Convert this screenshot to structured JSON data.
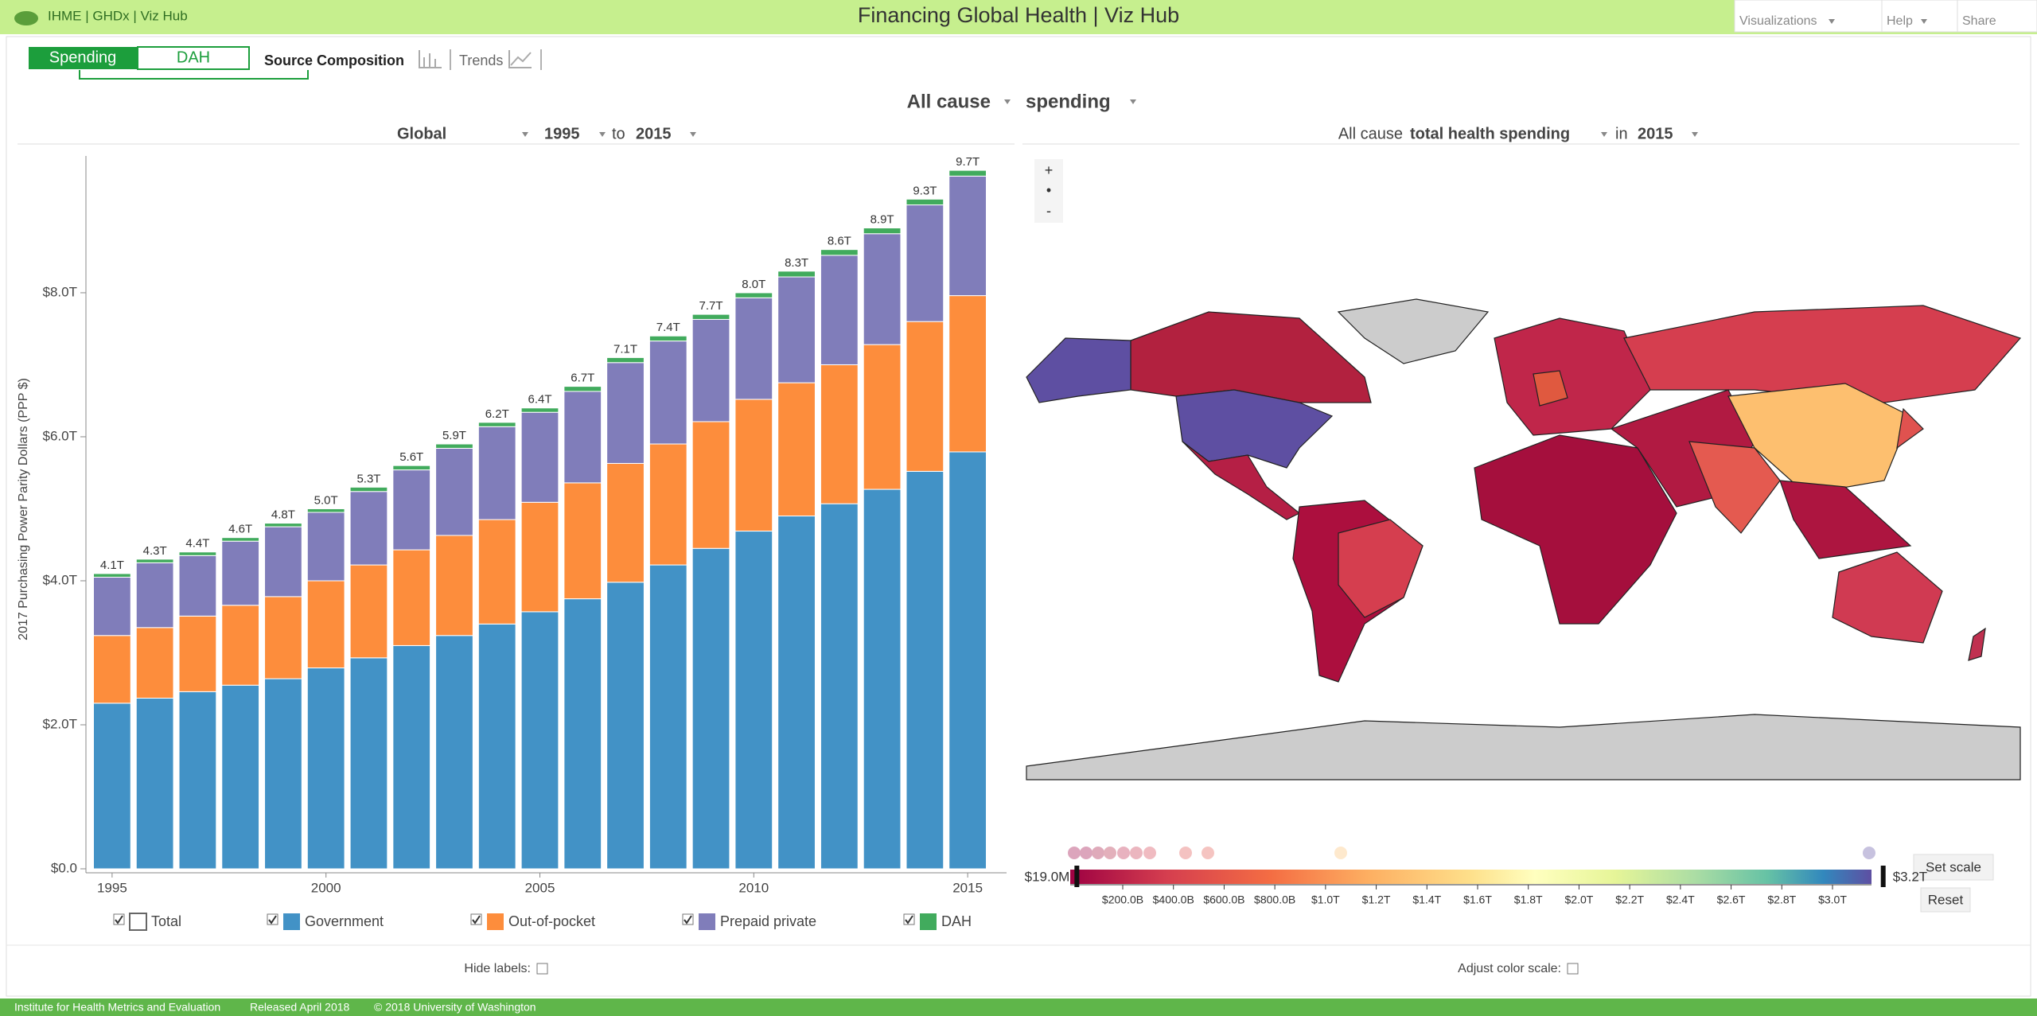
{
  "header": {
    "links": "IHME | GHDx | Viz Hub",
    "title": "Financing Global Health | Viz Hub",
    "menu": [
      "Visualizations",
      "Help",
      "Share"
    ]
  },
  "toolbar": {
    "toggle": [
      "Spending",
      "DAH"
    ],
    "views": [
      "Source Composition",
      "Trends"
    ]
  },
  "selector": {
    "cause": "All cause",
    "measure": "spending"
  },
  "left_filters": {
    "location": "Global",
    "start": "1995",
    "to": "to",
    "end": "2015"
  },
  "right_filters": {
    "cause": "All cause",
    "measure": "total health spending",
    "in": "in",
    "year": "2015"
  },
  "chart_data": {
    "type": "bar",
    "stacked": true,
    "ylabel": "2017 Purchasing Power Parity Dollars (PPP $)",
    "x": [
      1995,
      1996,
      1997,
      1998,
      1999,
      2000,
      2001,
      2002,
      2003,
      2004,
      2005,
      2006,
      2007,
      2008,
      2009,
      2010,
      2011,
      2012,
      2013,
      2014,
      2015
    ],
    "xlim": [
      1994.5,
      2015.5
    ],
    "xticks": [
      1995,
      2000,
      2005,
      2010,
      2015
    ],
    "ylim": [
      0,
      9.9
    ],
    "yticks": [
      {
        "value": 0,
        "label": "$0.0"
      },
      {
        "value": 2,
        "label": "$2.0T"
      },
      {
        "value": 4,
        "label": "$4.0T"
      },
      {
        "value": 6,
        "label": "$6.0T"
      },
      {
        "value": 8,
        "label": "$8.0T"
      }
    ],
    "series": [
      {
        "name": "Government",
        "color": "#4292c6",
        "values": [
          2.3,
          2.37,
          2.46,
          2.55,
          2.64,
          2.79,
          2.93,
          3.1,
          3.24,
          3.4,
          3.57,
          3.75,
          3.98,
          4.22,
          4.45,
          4.69,
          4.9,
          5.07,
          5.27,
          5.52,
          5.79
        ]
      },
      {
        "name": "Out-of-pocket",
        "color": "#fd8d3c",
        "values": [
          0.94,
          0.98,
          1.05,
          1.11,
          1.14,
          1.21,
          1.29,
          1.33,
          1.39,
          1.45,
          1.52,
          1.61,
          1.65,
          1.68,
          1.76,
          1.83,
          1.85,
          1.93,
          2.01,
          2.08,
          2.17
        ]
      },
      {
        "name": "Prepaid private",
        "color": "#807dba",
        "values": [
          0.81,
          0.9,
          0.84,
          0.89,
          0.97,
          0.95,
          1.02,
          1.11,
          1.21,
          1.29,
          1.25,
          1.27,
          1.4,
          1.43,
          1.42,
          1.41,
          1.47,
          1.52,
          1.54,
          1.62,
          1.66
        ]
      },
      {
        "name": "DAH",
        "color": "#41ab5d",
        "values": [
          0.05,
          0.05,
          0.05,
          0.05,
          0.05,
          0.05,
          0.06,
          0.06,
          0.06,
          0.06,
          0.06,
          0.07,
          0.07,
          0.07,
          0.07,
          0.07,
          0.08,
          0.08,
          0.08,
          0.08,
          0.08
        ]
      }
    ],
    "total": {
      "name": "Total",
      "values": [
        4.1,
        4.3,
        4.4,
        4.6,
        4.8,
        5.0,
        5.3,
        5.6,
        5.9,
        6.2,
        6.4,
        6.7,
        7.1,
        7.4,
        7.7,
        8.0,
        8.3,
        8.6,
        8.9,
        9.3,
        9.7
      ],
      "value_labels": [
        "4.1T",
        "4.3T",
        "4.4T",
        "4.6T",
        "4.8T",
        "5.0T",
        "5.3T",
        "5.6T",
        "5.9T",
        "6.2T",
        "6.4T",
        "6.7T",
        "7.1T",
        "7.4T",
        "7.7T",
        "8.0T",
        "8.3T",
        "8.6T",
        "8.9T",
        "9.3T",
        "9.7T"
      ]
    }
  },
  "map": {
    "zoom": [
      "+",
      "•",
      "-"
    ],
    "scale_lim": [
      {
        "value": 0.019,
        "label": "$19.0M"
      },
      {
        "value": 3.2,
        "label": "$3.2T"
      }
    ],
    "scale_ticks": [
      {
        "value": 0.2,
        "label": "$200.0B"
      },
      {
        "value": 0.4,
        "label": "$400.0B"
      },
      {
        "value": 0.6,
        "label": "$600.0B"
      },
      {
        "value": 0.8,
        "label": "$800.0B"
      },
      {
        "value": 1.0,
        "label": "$1.0T"
      },
      {
        "value": 1.2,
        "label": "$1.2T"
      },
      {
        "value": 1.4,
        "label": "$1.4T"
      },
      {
        "value": 1.6,
        "label": "$1.6T"
      },
      {
        "value": 1.8,
        "label": "$1.8T"
      },
      {
        "value": 2.0,
        "label": "$2.0T"
      },
      {
        "value": 2.2,
        "label": "$2.2T"
      },
      {
        "value": 2.4,
        "label": "$2.4T"
      },
      {
        "value": 2.6,
        "label": "$2.6T"
      },
      {
        "value": 2.8,
        "label": "$2.8T"
      },
      {
        "value": 3.0,
        "label": "$3.0T"
      }
    ],
    "buttons": [
      "Set scale",
      "Reset"
    ]
  },
  "options": {
    "hide_labels": "Hide labels:",
    "adjust_scale": "Adjust color scale:"
  },
  "footer": [
    "Institute for Health Metrics and Evaluation",
    "Released April 2018",
    "© 2018 University of Washington"
  ]
}
